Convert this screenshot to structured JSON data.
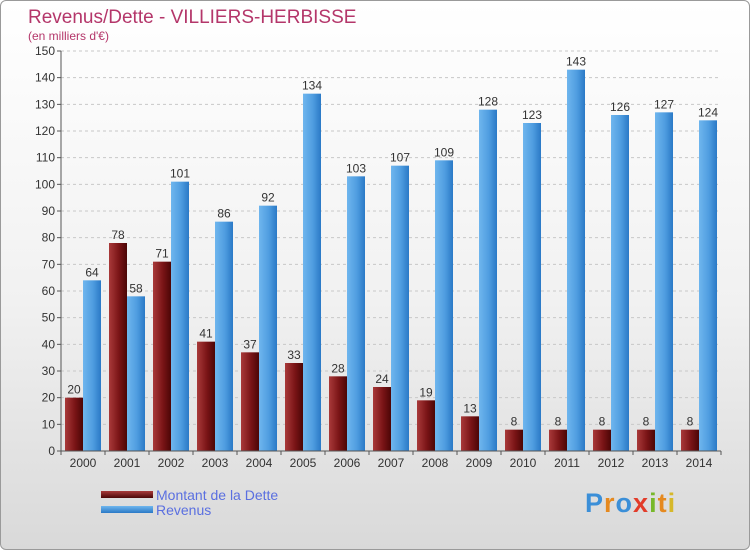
{
  "chart_data": {
    "type": "bar",
    "title": "Revenus/Dette - VILLIERS-HERBISSE",
    "subtitle": "(en milliers d'€)",
    "xlabel": "",
    "ylabel": "",
    "ylim": [
      0,
      150
    ],
    "yticks": [
      "0",
      "10",
      "20",
      "30",
      "40",
      "50",
      "60",
      "70",
      "80",
      "90",
      "100",
      "110",
      "120",
      "130",
      "140",
      "150"
    ],
    "grid": true,
    "legend_position": "bottom-left",
    "categories": [
      "2000",
      "2001",
      "2002",
      "2003",
      "2004",
      "2005",
      "2006",
      "2007",
      "2008",
      "2009",
      "2010",
      "2011",
      "2012",
      "2013",
      "2014"
    ],
    "series": [
      {
        "name": "Montant de la Dette",
        "color": "#7a1416",
        "values": [
          20,
          78,
          71,
          41,
          37,
          33,
          28,
          24,
          19,
          13,
          8,
          8,
          8,
          8,
          8
        ],
        "labels": [
          "20",
          "78",
          "71",
          "41",
          "37",
          "33",
          "28",
          "24",
          "19",
          "13",
          "8",
          "8",
          "8",
          "8",
          "8"
        ]
      },
      {
        "name": "Revenus",
        "color": "#4f9de0",
        "values": [
          64,
          58,
          101,
          86,
          92,
          134,
          103,
          107,
          109,
          128,
          123,
          143,
          126,
          127,
          124
        ],
        "labels": [
          "64",
          "58",
          "101",
          "86",
          "92",
          "134",
          "103",
          "107",
          "109",
          "128",
          "123",
          "143",
          "126",
          "127",
          "124"
        ]
      }
    ]
  },
  "logo": {
    "text": "Proxiti"
  }
}
